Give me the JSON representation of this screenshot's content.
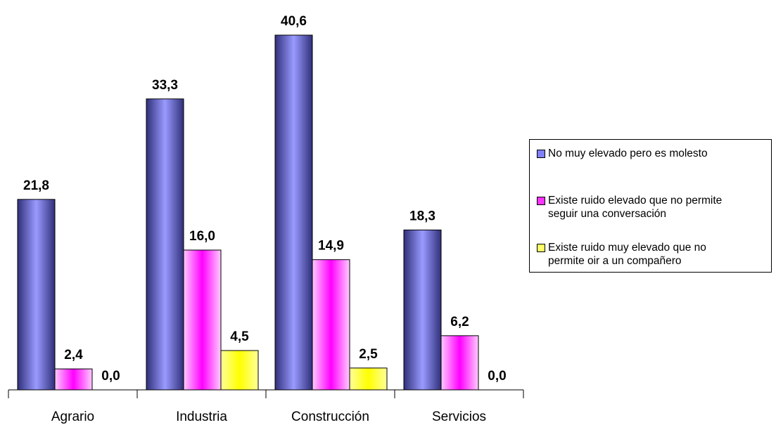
{
  "chart_data": {
    "type": "bar",
    "title": "",
    "xlabel": "",
    "ylabel": "",
    "ylim": [
      0,
      42.3
    ],
    "grid": false,
    "legend_position": "right",
    "categories": [
      "Agrario",
      "Industria",
      "Construcción",
      "Servicios"
    ],
    "series": [
      {
        "name": "No muy elevado pero es molesto",
        "values": [
          21.8,
          33.3,
          40.6,
          18.3
        ],
        "labels": [
          "21,8",
          "33,3",
          "40,6",
          "18,3"
        ],
        "color": "#8080ff"
      },
      {
        "name": "Existe ruido elevado que no permite\nseguir una conversación",
        "values": [
          2.4,
          16.0,
          14.9,
          6.2
        ],
        "labels": [
          "2,4",
          "16,0",
          "14,9",
          "6,2"
        ],
        "color": "#ff33ff"
      },
      {
        "name": "Existe ruido muy elevado que no\npermite oir a un compañero",
        "values": [
          0.0,
          4.5,
          2.5,
          0.0
        ],
        "labels": [
          "0,0",
          "4,5",
          "2,5",
          "0,0"
        ],
        "color": "#ffff66"
      }
    ]
  }
}
